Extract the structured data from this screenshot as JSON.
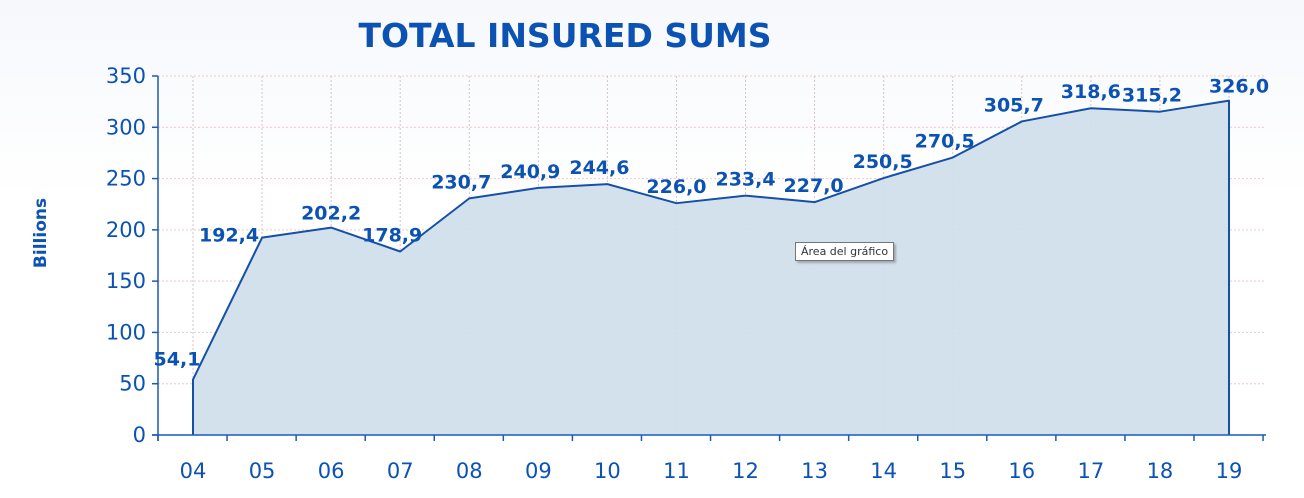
{
  "chart_data": {
    "type": "area",
    "title": "TOTAL INSURED SUMS",
    "ylabel": "Billions",
    "xlabel": "",
    "categories": [
      "04",
      "05",
      "06",
      "07",
      "08",
      "09",
      "10",
      "11",
      "12",
      "13",
      "14",
      "15",
      "16",
      "17",
      "18",
      "19"
    ],
    "values": [
      54.1,
      192.4,
      202.2,
      178.9,
      230.7,
      240.9,
      244.6,
      226.0,
      233.4,
      227.0,
      250.5,
      270.5,
      305.7,
      318.6,
      315.2,
      326.0
    ],
    "value_labels": [
      "54,1",
      "192,4",
      "202,2",
      "178,9",
      "230,7",
      "240,9",
      "244,6",
      "226,0",
      "233,4",
      "227,0",
      "250,5",
      "270,5",
      "305,7",
      "318,6",
      "315,2",
      "326,0"
    ],
    "ylim": [
      0,
      350
    ],
    "yticks": [
      0,
      50,
      100,
      150,
      200,
      250,
      300,
      350
    ],
    "grid": true,
    "legend": "none",
    "colors": {
      "text": "#0b52b3",
      "line": "#1550a8",
      "fill": "#d1dfeb",
      "axis": "#1b5ab8",
      "grid_horizontal": "#f0c8c8",
      "grid_vertical": "#d6c3cf"
    }
  },
  "tooltip": {
    "text": "Área del gráfico"
  }
}
